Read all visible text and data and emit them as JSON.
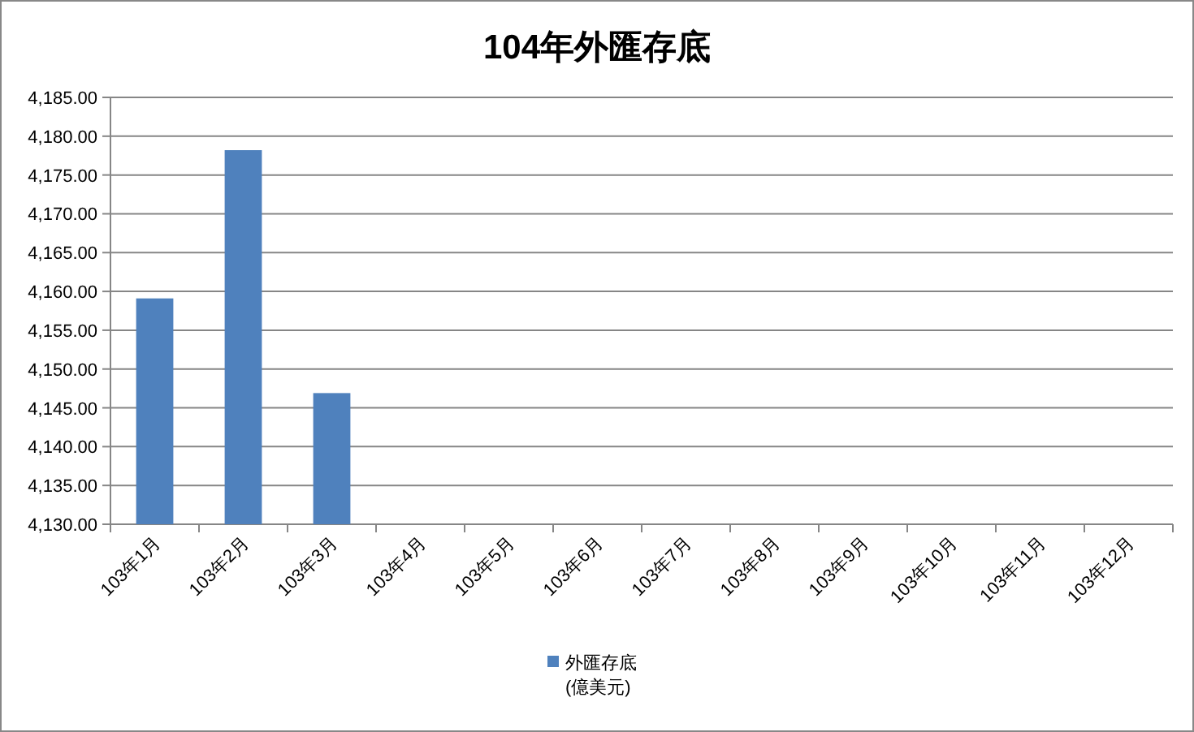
{
  "chart_data": {
    "type": "bar",
    "title": "104年外匯存底",
    "categories": [
      "103年1月",
      "103年2月",
      "103年3月",
      "103年4月",
      "103年5月",
      "103年6月",
      "103年7月",
      "103年8月",
      "103年9月",
      "103年10月",
      "103年11月",
      "103年12月"
    ],
    "series": [
      {
        "name": "外匯存底\n(億美元)",
        "color": "#4f81bd",
        "values": [
          4159.1,
          4178.2,
          4146.9,
          null,
          null,
          null,
          null,
          null,
          null,
          null,
          null,
          null
        ]
      }
    ],
    "ylim": [
      4130,
      4185
    ],
    "yticks": [
      {
        "value": 4130,
        "label": "4,130.00"
      },
      {
        "value": 4135,
        "label": "4,135.00"
      },
      {
        "value": 4140,
        "label": "4,140.00"
      },
      {
        "value": 4145,
        "label": "4,145.00"
      },
      {
        "value": 4150,
        "label": "4,150.00"
      },
      {
        "value": 4155,
        "label": "4,155.00"
      },
      {
        "value": 4160,
        "label": "4,160.00"
      },
      {
        "value": 4165,
        "label": "4,165.00"
      },
      {
        "value": 4170,
        "label": "4,170.00"
      },
      {
        "value": 4175,
        "label": "4,175.00"
      },
      {
        "value": 4180,
        "label": "4,180.00"
      },
      {
        "value": 4185,
        "label": "4,185.00"
      }
    ],
    "grid": "y",
    "legend": "bottom"
  }
}
